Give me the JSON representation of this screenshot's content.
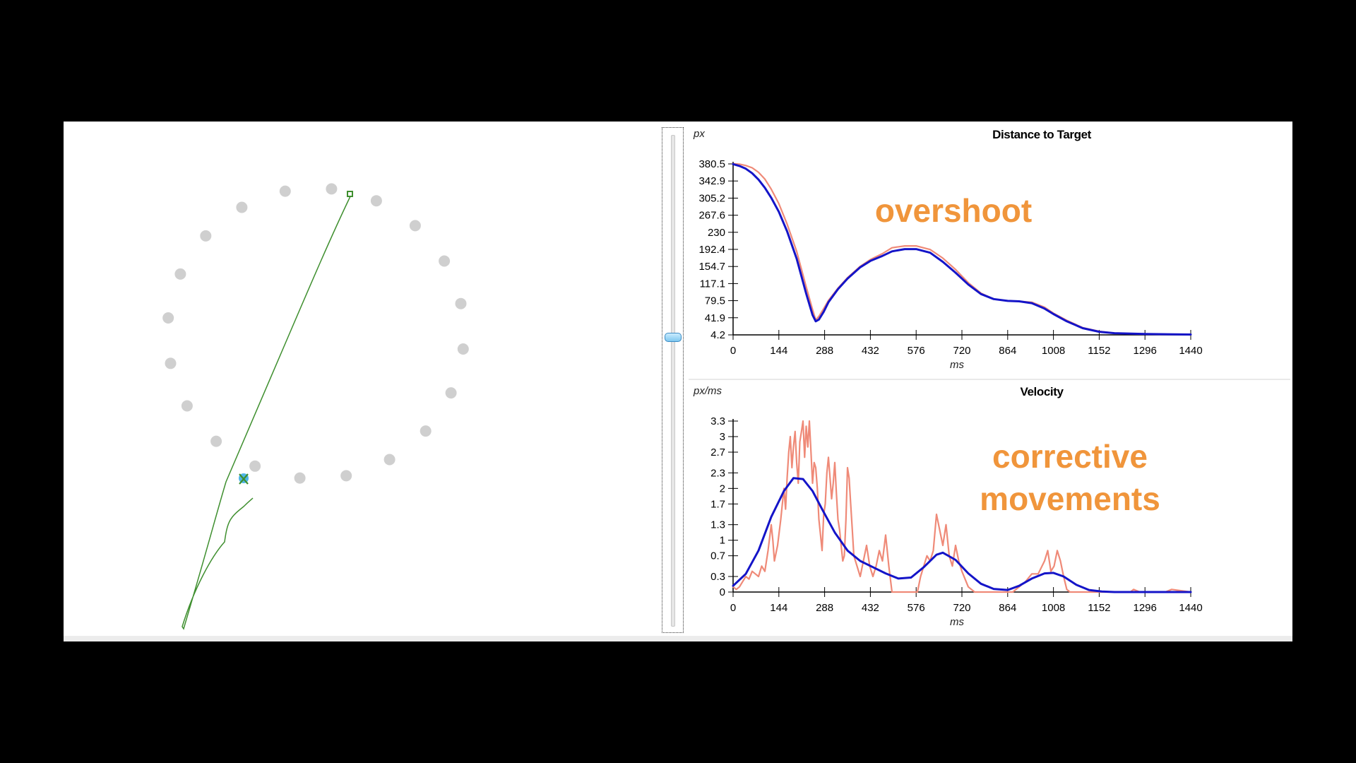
{
  "colors": {
    "raw": "#ef8a78",
    "smooth": "#1414c8",
    "path": "#3f8f2f",
    "target_dot": "#cfcfcf",
    "annotation": "#f0953b"
  },
  "annotations": {
    "overshoot": "overshoot",
    "corrective_line1": "corrective",
    "corrective_line2": "movements"
  },
  "slider": {
    "position": 0.41
  },
  "target_panel": {
    "target_count": 20,
    "icons": [
      "start-square-icon",
      "cursor-dot-icon",
      "end-cross-icon"
    ]
  },
  "chart_data": [
    {
      "type": "line",
      "title": "Distance to Target",
      "ylabel": "px",
      "xlabel": "ms",
      "x_ticks": [
        0,
        144,
        288,
        432,
        576,
        720,
        864,
        1008,
        1152,
        1296,
        1440
      ],
      "y_ticks": [
        4.2,
        41.9,
        79.5,
        117.1,
        154.7,
        192.4,
        230,
        267.6,
        305.2,
        342.9,
        380.5
      ],
      "y_tick_labels": [
        "4.2",
        "41.9",
        "79.5",
        "117.1",
        "154.7",
        "192.4",
        "230",
        "267.6",
        "305.2",
        "342.9",
        "380.5"
      ],
      "xlim": [
        0,
        1440
      ],
      "ylim": [
        4.2,
        380.5
      ],
      "series": [
        {
          "color_key": "raw",
          "x": [
            0,
            20,
            40,
            60,
            80,
            100,
            120,
            144,
            170,
            200,
            230,
            250,
            260,
            270,
            285,
            300,
            330,
            360,
            400,
            432,
            470,
            500,
            540,
            576,
            620,
            660,
            700,
            740,
            780,
            820,
            864,
            900,
            940,
            980,
            1008,
            1050,
            1100,
            1152,
            1200,
            1296,
            1440
          ],
          "y": [
            381,
            380,
            377,
            372,
            362,
            347,
            325,
            293,
            248,
            188,
            110,
            60,
            37,
            45,
            62,
            80,
            107,
            130,
            155,
            170,
            183,
            196,
            200,
            200,
            192,
            173,
            148,
            119,
            96,
            83,
            79,
            78,
            76,
            65,
            52,
            36,
            20,
            12,
            8,
            6,
            5
          ]
        },
        {
          "color_key": "smooth",
          "x": [
            0,
            20,
            40,
            60,
            80,
            100,
            120,
            144,
            170,
            200,
            230,
            250,
            260,
            270,
            285,
            300,
            330,
            360,
            400,
            432,
            470,
            500,
            540,
            576,
            620,
            660,
            700,
            740,
            780,
            820,
            864,
            900,
            940,
            980,
            1008,
            1050,
            1100,
            1152,
            1200,
            1296,
            1440
          ],
          "y": [
            380,
            376,
            370,
            360,
            346,
            328,
            306,
            275,
            232,
            172,
            95,
            48,
            34,
            38,
            55,
            76,
            105,
            128,
            153,
            167,
            178,
            188,
            193,
            193,
            185,
            165,
            141,
            115,
            94,
            83,
            79,
            78,
            74,
            62,
            50,
            34,
            19,
            11,
            8,
            6,
            5
          ]
        }
      ]
    },
    {
      "type": "line",
      "title": "Velocity",
      "ylabel": "px/ms",
      "xlabel": "ms",
      "x_ticks": [
        0,
        144,
        288,
        432,
        576,
        720,
        864,
        1008,
        1152,
        1296,
        1440
      ],
      "y_ticks": [
        0,
        0.3,
        0.7,
        1,
        1.3,
        1.7,
        2,
        2.3,
        2.7,
        3,
        3.3
      ],
      "y_tick_labels": [
        "0",
        "0.3",
        "0.7",
        "1",
        "1.3",
        "1.7",
        "2",
        "2.3",
        "2.7",
        "3",
        "3.3"
      ],
      "xlim": [
        0,
        1440
      ],
      "ylim": [
        0,
        3.3
      ],
      "series": [
        {
          "color_key": "raw",
          "x": [
            0,
            10,
            20,
            30,
            40,
            50,
            60,
            70,
            80,
            90,
            100,
            110,
            120,
            125,
            130,
            140,
            150,
            160,
            165,
            170,
            175,
            180,
            185,
            190,
            195,
            200,
            205,
            210,
            215,
            220,
            225,
            230,
            235,
            240,
            245,
            250,
            255,
            260,
            265,
            270,
            275,
            280,
            285,
            290,
            295,
            300,
            305,
            310,
            315,
            320,
            325,
            330,
            335,
            340,
            345,
            350,
            355,
            360,
            365,
            370,
            375,
            380,
            390,
            400,
            410,
            420,
            430,
            440,
            450,
            460,
            470,
            480,
            490,
            500,
            510,
            520,
            530,
            540,
            550,
            560,
            570,
            580,
            590,
            600,
            610,
            620,
            630,
            640,
            650,
            660,
            670,
            680,
            690,
            700,
            710,
            720,
            740,
            760,
            780,
            800,
            820,
            840,
            860,
            880,
            900,
            920,
            940,
            960,
            980,
            990,
            1000,
            1010,
            1020,
            1030,
            1040,
            1050,
            1060,
            1080,
            1100,
            1120,
            1140,
            1160,
            1180,
            1200,
            1220,
            1240,
            1250,
            1260,
            1280,
            1300,
            1320,
            1340,
            1360,
            1380,
            1440
          ],
          "y": [
            0.1,
            0.05,
            0.1,
            0.2,
            0.3,
            0.25,
            0.4,
            0.35,
            0.3,
            0.5,
            0.4,
            0.8,
            1.3,
            1.0,
            0.6,
            0.9,
            1.4,
            2.0,
            1.6,
            2.2,
            2.7,
            3.0,
            2.4,
            2.8,
            3.1,
            2.5,
            2.1,
            2.9,
            3.1,
            3.3,
            2.6,
            3.2,
            2.8,
            3.3,
            2.7,
            2.1,
            2.5,
            2.4,
            2.0,
            1.4,
            1.1,
            0.8,
            1.5,
            1.7,
            2.3,
            2.6,
            2.2,
            1.8,
            2.1,
            2.5,
            1.9,
            1.4,
            1.2,
            0.9,
            0.6,
            0.7,
            1.4,
            2.4,
            2.2,
            1.7,
            1.2,
            0.7,
            0.5,
            0.3,
            0.6,
            0.9,
            0.5,
            0.3,
            0.5,
            0.8,
            0.6,
            1.1,
            0.5,
            0.0,
            0.0,
            0.0,
            0.0,
            0.0,
            0.0,
            0.0,
            0.0,
            0.0,
            0.3,
            0.5,
            0.7,
            0.6,
            0.8,
            1.5,
            1.2,
            0.9,
            1.3,
            0.7,
            0.5,
            0.9,
            0.6,
            0.4,
            0.1,
            0.0,
            0.0,
            0.0,
            0.0,
            0.0,
            0.0,
            0.0,
            0.1,
            0.2,
            0.35,
            0.35,
            0.6,
            0.8,
            0.4,
            0.5,
            0.8,
            0.6,
            0.3,
            0.05,
            0.0,
            0.0,
            0.0,
            0.0,
            0.0,
            0.0,
            0.0,
            0.0,
            0.0,
            0.0,
            0.0,
            0.05,
            0.0,
            0.0,
            0.0,
            0.0,
            0.0,
            0.05,
            0.0
          ],
          "comment_hidden": ""
        },
        {
          "color_key": "smooth",
          "x": [
            0,
            40,
            80,
            120,
            160,
            190,
            220,
            250,
            280,
            320,
            360,
            400,
            440,
            480,
            520,
            560,
            600,
            640,
            660,
            700,
            740,
            780,
            820,
            864,
            900,
            940,
            980,
            1008,
            1040,
            1080,
            1120,
            1160,
            1200,
            1296,
            1440
          ],
          "y": [
            0.12,
            0.35,
            0.8,
            1.45,
            1.95,
            2.2,
            2.18,
            1.95,
            1.6,
            1.15,
            0.8,
            0.6,
            0.48,
            0.36,
            0.26,
            0.28,
            0.48,
            0.72,
            0.76,
            0.62,
            0.36,
            0.16,
            0.06,
            0.04,
            0.12,
            0.26,
            0.36,
            0.37,
            0.3,
            0.14,
            0.04,
            0.01,
            0.0,
            0.0,
            0.0
          ]
        }
      ]
    }
  ]
}
